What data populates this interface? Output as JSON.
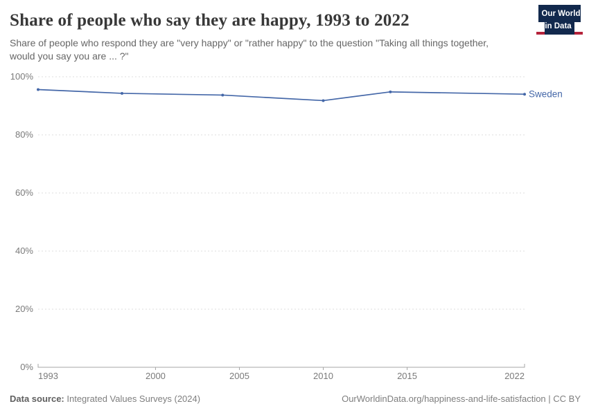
{
  "header": {
    "title": "Share of people who say they are happy, 1993 to 2022",
    "subtitle": "Share of people who respond they are \"very happy\" or \"rather happy\" to the question \"Taking all things together, would you say you are ... ?\""
  },
  "logo": {
    "line1": "Our World",
    "line2": "in Data",
    "bg_color": "#12294d",
    "accent_color": "#b5233b"
  },
  "chart_data": {
    "type": "line",
    "title": "Share of people who say they are happy, 1993 to 2022",
    "series": [
      {
        "name": "Sweden",
        "color": "#4467a8",
        "x": [
          1993,
          1998,
          2004,
          2010,
          2014,
          2022
        ],
        "values": [
          95.6,
          94.3,
          93.7,
          91.8,
          94.8,
          94.0
        ]
      }
    ],
    "xlim": [
      1993,
      2022
    ],
    "ylim": [
      0,
      100
    ],
    "xticks": [
      1993,
      2000,
      2005,
      2010,
      2015,
      2022
    ],
    "yticks": [
      0,
      20,
      40,
      60,
      80,
      100
    ],
    "ytick_suffix": "%",
    "grid": "horizontal-dashed",
    "grid_color": "#dddddd",
    "tick_color": "#7a7a7a",
    "axis_color": "#a5a5a5",
    "legend_position": "end-of-line-label"
  },
  "footer": {
    "source_label": "Data source:",
    "source_value": "Integrated Values Surveys (2024)",
    "attribution": "OurWorldinData.org/happiness-and-life-satisfaction | CC BY"
  }
}
